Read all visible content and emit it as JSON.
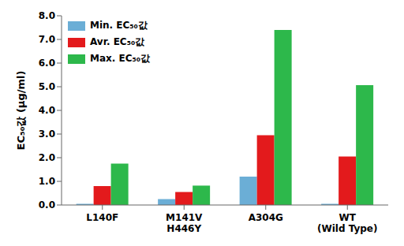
{
  "chart_data": {
    "type": "bar",
    "ylabel": "EC₅₀값 (μg/ml)",
    "categories": [
      "L140F",
      "M141V\nH446Y",
      "A304G",
      "WT\n(Wild Type)"
    ],
    "series": [
      {
        "name": "Min. EC₅₀값",
        "color": "#6baed6",
        "values": [
          0.05,
          0.25,
          1.2,
          0.05
        ]
      },
      {
        "name": "Avr. EC₅₀값",
        "color": "#e31a1c",
        "values": [
          0.8,
          0.55,
          2.95,
          2.05
        ]
      },
      {
        "name": "Max. EC₅₀값",
        "color": "#2db84b",
        "values": [
          1.75,
          0.82,
          7.4,
          5.07
        ]
      }
    ],
    "ylim": [
      0,
      8
    ],
    "yticks": [
      {
        "value": 0,
        "label": "0.0"
      },
      {
        "value": 1,
        "label": "1.0"
      },
      {
        "value": 2,
        "label": "2.0"
      },
      {
        "value": 3,
        "label": "3.0"
      },
      {
        "value": 4,
        "label": "4.0"
      },
      {
        "value": 5,
        "label": "5.0"
      },
      {
        "value": 6,
        "label": "6.0"
      },
      {
        "value": 7,
        "label": "7.0"
      },
      {
        "value": 8,
        "label": "8.0"
      }
    ],
    "grid": false,
    "legend": "upper left"
  }
}
